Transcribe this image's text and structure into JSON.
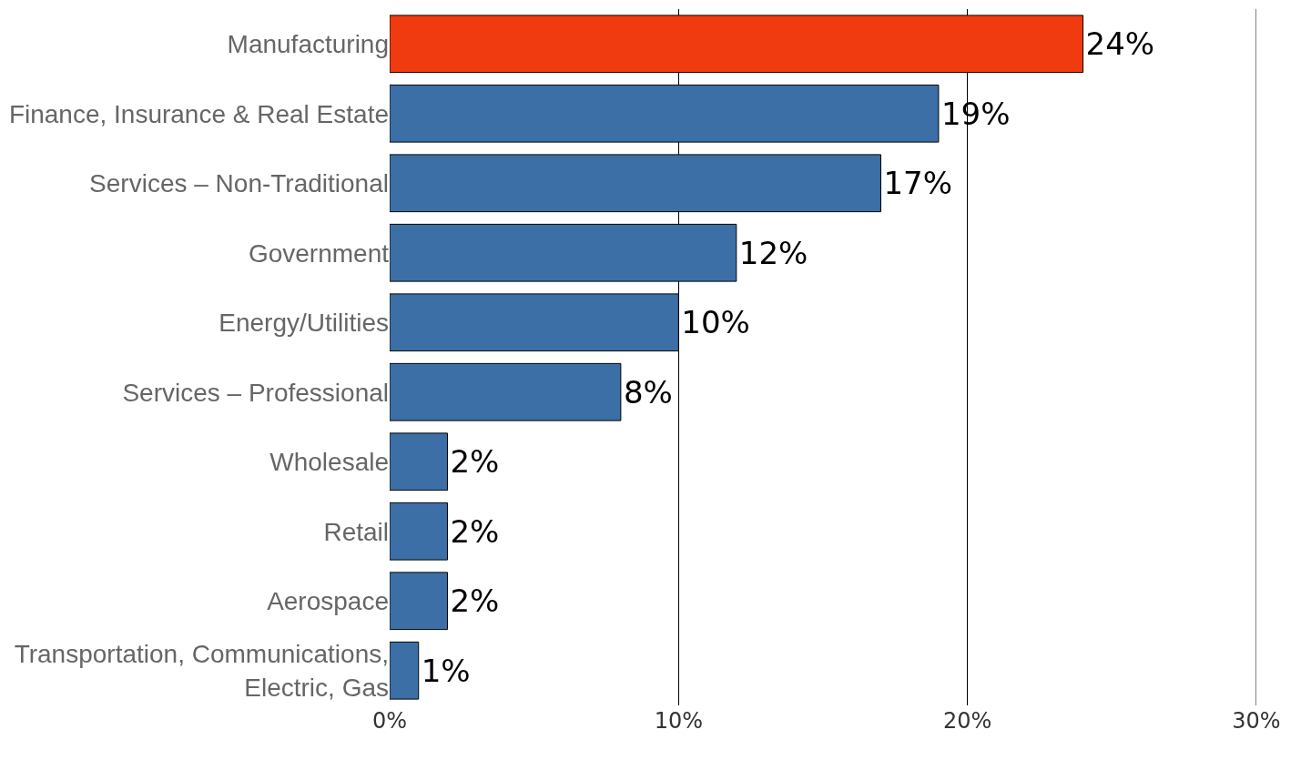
{
  "chart_data": {
    "type": "bar",
    "orientation": "horizontal",
    "categories": [
      "Manufacturing",
      "Finance, Insurance & Real Estate",
      "Services – Non-Traditional",
      "Government",
      "Energy/Utilities",
      "Services – Professional",
      "Wholesale",
      "Retail",
      "Aerospace",
      "Transportation, Communications,\nElectric, Gas"
    ],
    "values": [
      24,
      19,
      17,
      12,
      10,
      8,
      2,
      2,
      2,
      1
    ],
    "colors": [
      "#f03a10",
      "#3b6fa6",
      "#3b6fa6",
      "#3b6fa6",
      "#3b6fa6",
      "#3b6fa6",
      "#3b6fa6",
      "#3b6fa6",
      "#3b6fa6",
      "#3b6fa6"
    ],
    "value_labels": [
      "24%",
      "19%",
      "17%",
      "12%",
      "10%",
      "8%",
      "2%",
      "2%",
      "2%",
      "1%"
    ],
    "xlim": [
      0,
      30
    ],
    "xticks": [
      {
        "value": 0,
        "label": "0%"
      },
      {
        "value": 10,
        "label": "10%"
      },
      {
        "value": 20,
        "label": "20%"
      },
      {
        "value": 30,
        "label": "30%"
      }
    ],
    "grid": "x",
    "legend": false
  }
}
